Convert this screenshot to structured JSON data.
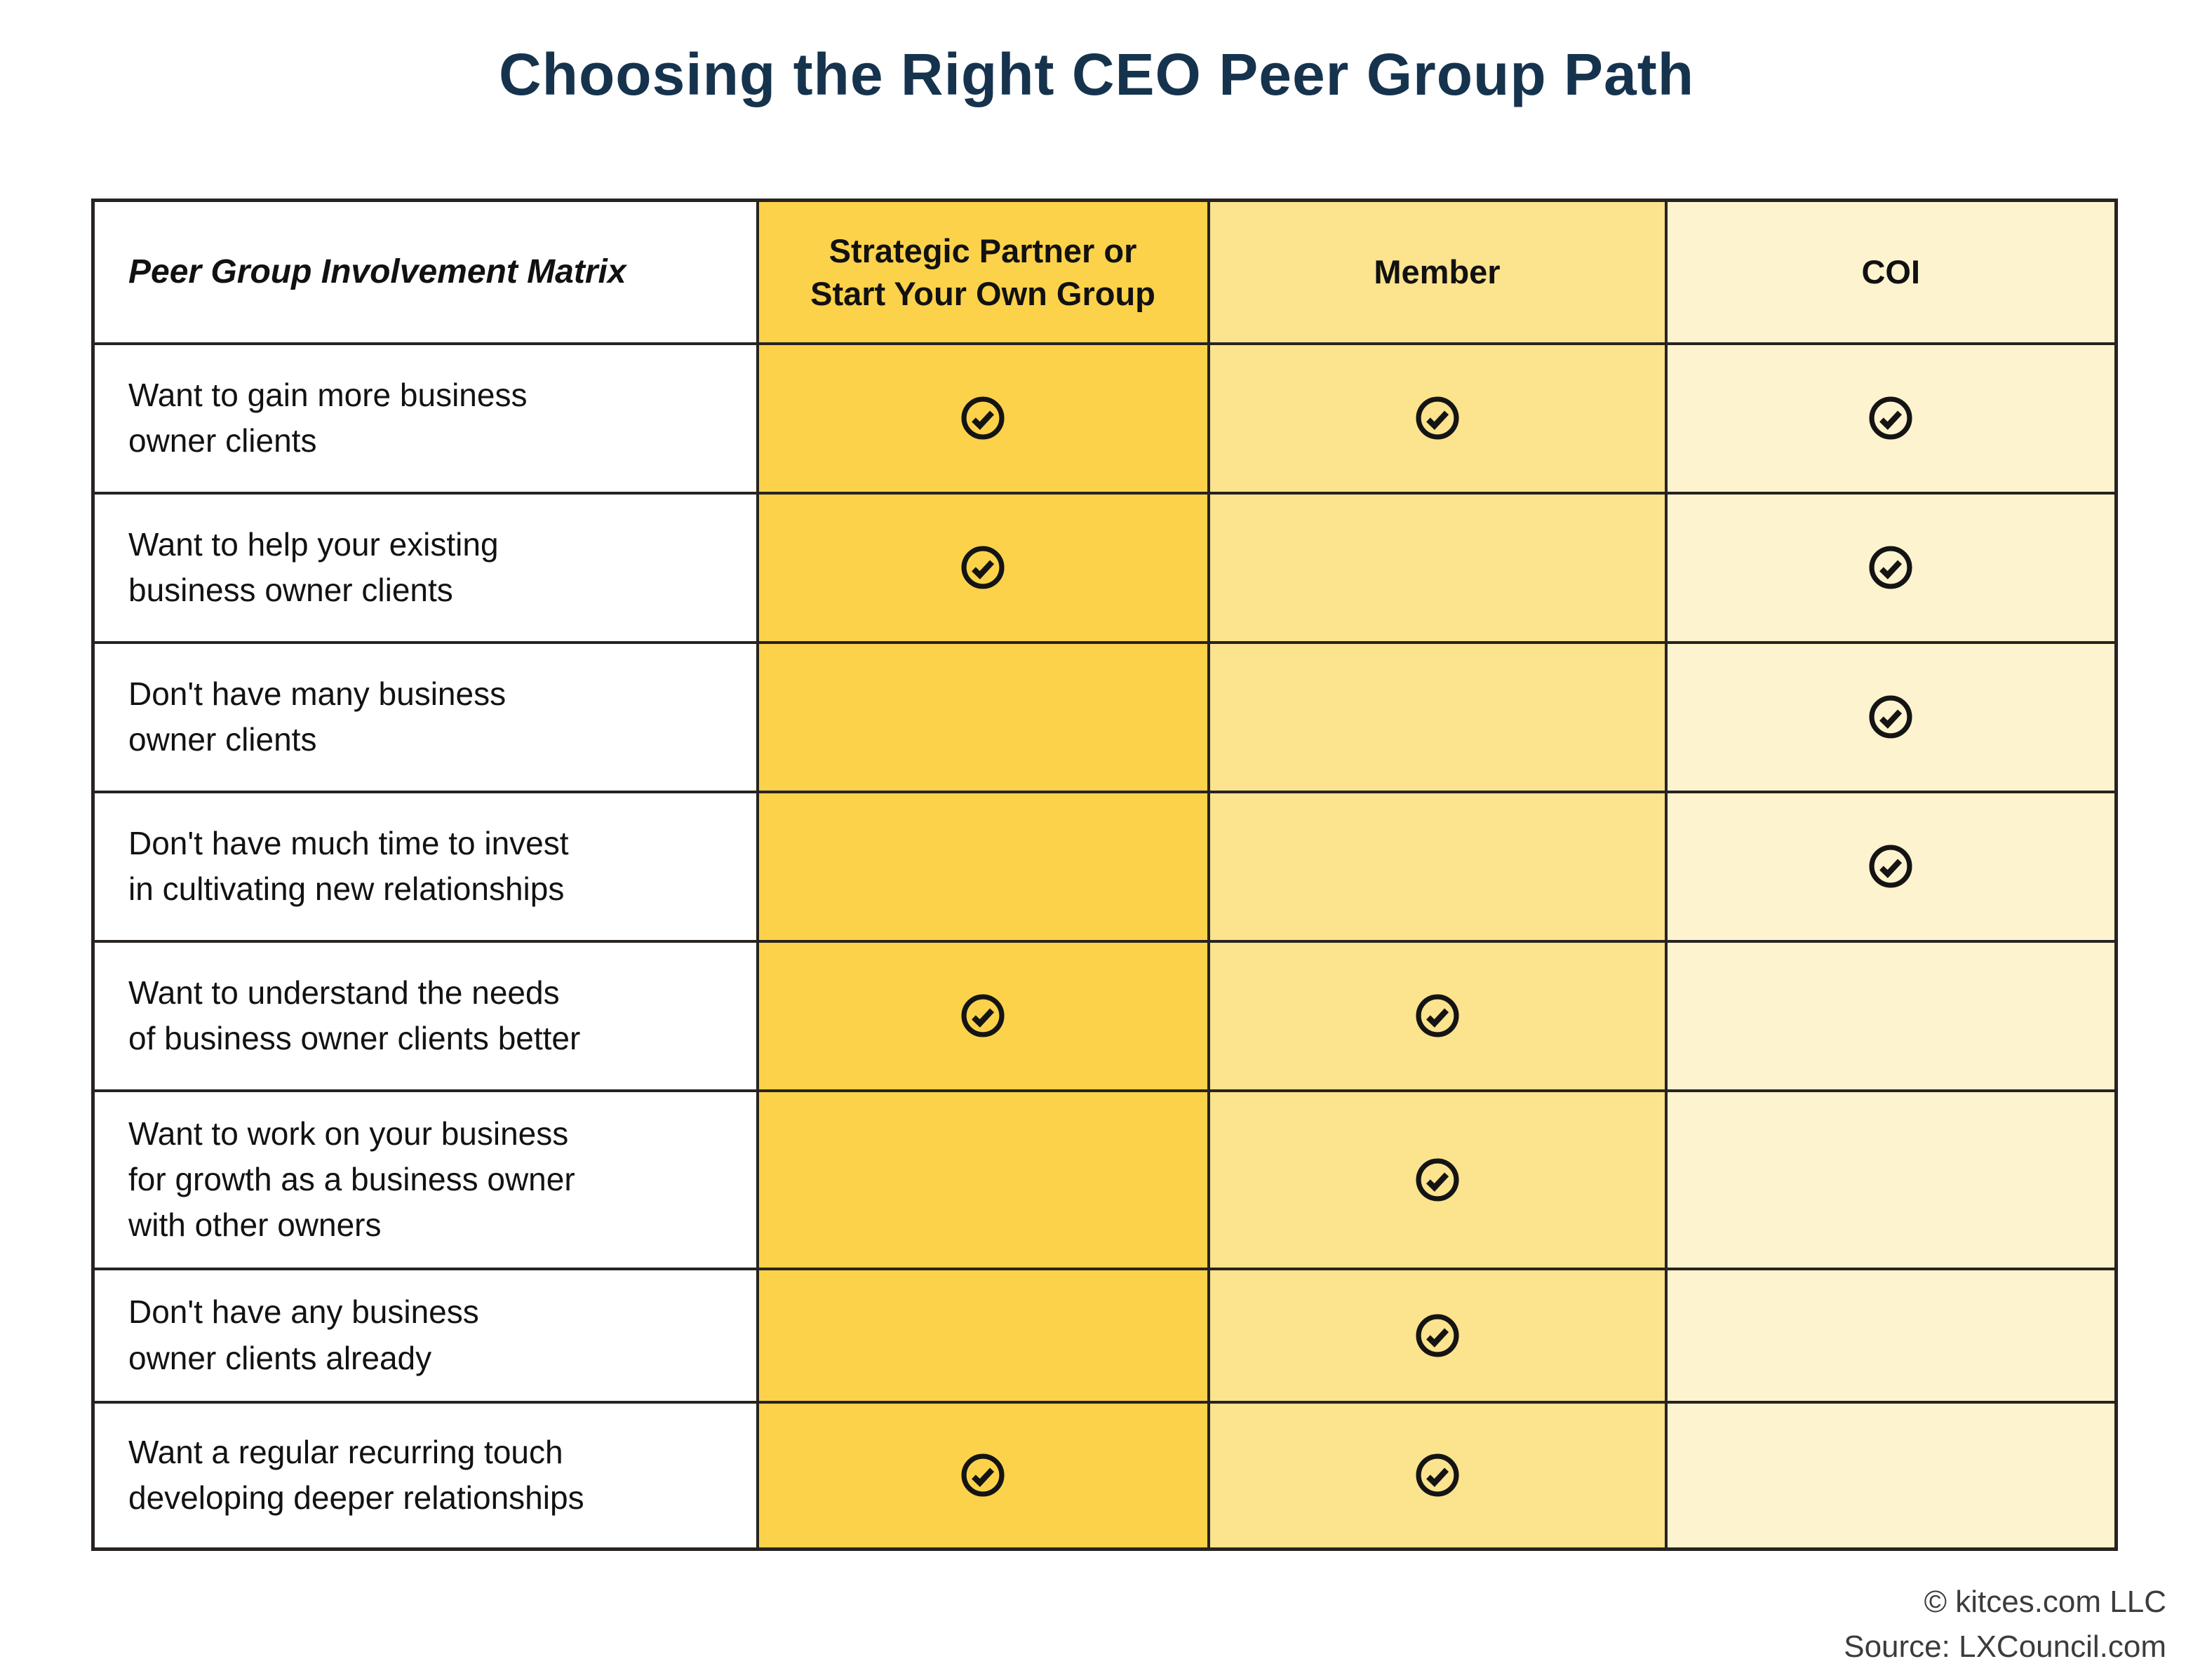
{
  "title": "Choosing the Right CEO Peer Group Path",
  "chart_data": {
    "type": "table",
    "title": "Choosing the Right CEO Peer Group Path",
    "corner_label": "Peer Group Involvement Matrix",
    "columns": [
      "Strategic Partner or Start Your Own Group",
      "Member",
      "COI"
    ],
    "columns_display": [
      "Strategic Partner or\nStart Your Own Group",
      "Member",
      "COI"
    ],
    "check_symbol": "circled-checkmark",
    "rows": [
      {
        "label": "Want to gain more business owner clients",
        "label_display": "Want to gain more business\nowner clients",
        "checks": [
          true,
          true,
          true
        ]
      },
      {
        "label": "Want to help your existing business owner clients",
        "label_display": "Want to help your existing\nbusiness owner clients",
        "checks": [
          true,
          false,
          true
        ]
      },
      {
        "label": "Don't have many business owner clients",
        "label_display": "Don't have many business\nowner clients",
        "checks": [
          false,
          false,
          true
        ]
      },
      {
        "label": "Don't have much time to invest in cultivating new relationships",
        "label_display": "Don't have much time to invest\nin cultivating new relationships",
        "checks": [
          false,
          false,
          true
        ]
      },
      {
        "label": "Want to understand the needs of business owner clients better",
        "label_display": "Want to understand the needs\nof business owner clients better",
        "checks": [
          true,
          true,
          false
        ]
      },
      {
        "label": "Want to work on your business for growth as a business owner with other owners",
        "label_display": "Want to work on your business\nfor growth as a business owner\nwith other owners",
        "checks": [
          false,
          true,
          false
        ]
      },
      {
        "label": "Don't have any business owner clients already",
        "label_display": "Don't have any business\nowner clients already",
        "checks": [
          false,
          true,
          false
        ]
      },
      {
        "label": "Want a regular recurring touch developing deeper relationships",
        "label_display": "Want a regular recurring touch\ndeveloping deeper relationships",
        "checks": [
          true,
          true,
          false
        ]
      }
    ]
  },
  "footer": {
    "copyright": "© kitces.com LLC",
    "source": "Source: LXCouncil.com"
  },
  "colors": {
    "title_navy": "#16334E",
    "strategic_gold": "#FCD24A",
    "member_yellow": "#FCE38D",
    "coi_cream": "#FDF3CF",
    "border_dark": "#272321",
    "check_black": "#141414",
    "footer_gray": "#3C3C3C"
  },
  "icons": {
    "check": "check-circle-icon"
  }
}
